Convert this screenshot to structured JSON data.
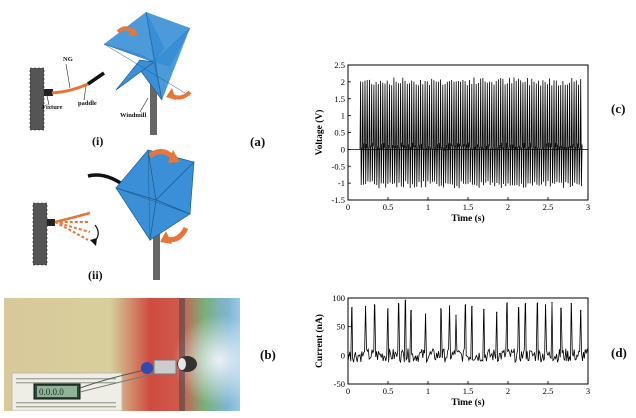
{
  "panels": {
    "a": {
      "label": "(a)",
      "sub_i": "(i)",
      "sub_ii": "(ii)",
      "labels": {
        "ng": "NG",
        "fixture": "Fixture",
        "paddle": "paddle",
        "windmill": "Windmill"
      }
    },
    "b": {
      "label": "(b)",
      "display_text": "0.0.0.0"
    },
    "c": {
      "label": "(c)"
    },
    "d": {
      "label": "(d)"
    }
  },
  "chart_data": [
    {
      "id": "voltage",
      "type": "line",
      "xlabel": "Time (s)",
      "ylabel": "Voltage (V)",
      "xlim": [
        0,
        3
      ],
      "ylim": [
        -1.5,
        2.5
      ],
      "xticks": [
        "0",
        "0.5",
        "1",
        "1.5",
        "2",
        "2.5",
        "3"
      ],
      "yticks": [
        "-1.5",
        "-1",
        "-0.5",
        "0",
        "0.5",
        "1",
        "1.5",
        "2",
        "2.5"
      ],
      "signal": {
        "start": 0.15,
        "end": 2.93,
        "cycles": 100,
        "peak": 2.1,
        "trough": -1.1,
        "baseline": 0
      },
      "color": "#000000"
    },
    {
      "id": "current",
      "type": "line",
      "xlabel": "Time (s)",
      "ylabel": "Current (nA)",
      "xlim": [
        0,
        3
      ],
      "ylim": [
        -50,
        100
      ],
      "xticks": [
        "0",
        "0.5",
        "1",
        "1.5",
        "2",
        "2.5",
        "3"
      ],
      "yticks": [
        "-50",
        "0",
        "50",
        "100"
      ],
      "peaks": [
        {
          "x": 0.05,
          "y": 83
        },
        {
          "x": 0.22,
          "y": 85
        },
        {
          "x": 0.33,
          "y": 88
        },
        {
          "x": 0.5,
          "y": 81
        },
        {
          "x": 0.63,
          "y": 90
        },
        {
          "x": 0.72,
          "y": 96
        },
        {
          "x": 0.79,
          "y": 78
        },
        {
          "x": 0.97,
          "y": 72
        },
        {
          "x": 1.16,
          "y": 81
        },
        {
          "x": 1.27,
          "y": 86
        },
        {
          "x": 1.35,
          "y": 70
        },
        {
          "x": 1.47,
          "y": 88
        },
        {
          "x": 1.55,
          "y": 85
        },
        {
          "x": 1.7,
          "y": 80
        },
        {
          "x": 1.86,
          "y": 75
        },
        {
          "x": 1.99,
          "y": 91
        },
        {
          "x": 2.13,
          "y": 83
        },
        {
          "x": 2.22,
          "y": 90
        },
        {
          "x": 2.37,
          "y": 91
        },
        {
          "x": 2.47,
          "y": 88
        },
        {
          "x": 2.55,
          "y": 92
        },
        {
          "x": 2.66,
          "y": 82
        },
        {
          "x": 2.79,
          "y": 90
        },
        {
          "x": 2.91,
          "y": 78
        }
      ],
      "noise": {
        "min": -12,
        "max": 12
      },
      "color": "#000000"
    }
  ]
}
